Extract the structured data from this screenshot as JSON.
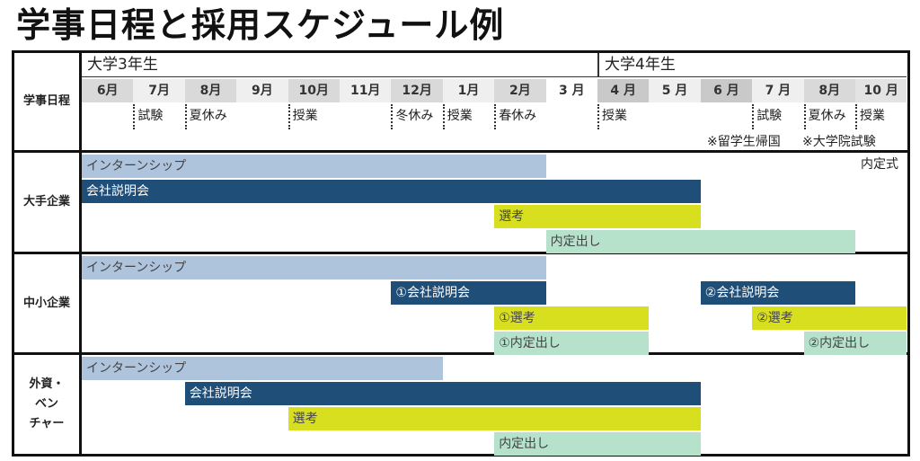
{
  "title": "学事日程と採用スケジュール例",
  "years": [
    {
      "label": "大学3年生",
      "start": 0,
      "end": 10
    },
    {
      "label": "大学4年生",
      "start": 10,
      "end": 16
    }
  ],
  "months": [
    "6月",
    "7月",
    "8月",
    "9月",
    "10月",
    "11月",
    "12月",
    "1月",
    "2月",
    "3 月",
    "4 月",
    "5 月",
    "6 月",
    "7 月",
    "8月",
    "10 月"
  ],
  "month_shades": [
    "#d9d9d9",
    "#efefef",
    "#d9d9d9",
    "#efefef",
    "#d9d9d9",
    "#efefef",
    "#d9d9d9",
    "#efefef",
    "#d9d9d9",
    "#ffffff",
    "#c9c9c9",
    "#efefef",
    "#c9c9c9",
    "#efefef",
    "#d9d9d9",
    "#e3e3e3"
  ],
  "academic": {
    "label": "学事日程",
    "items": [
      {
        "label": "試験",
        "col": 1
      },
      {
        "label": "夏休み",
        "col": 2
      },
      {
        "label": "授業",
        "col": 4
      },
      {
        "label": "冬休み",
        "col": 6
      },
      {
        "label": "授業",
        "col": 7
      },
      {
        "label": "春休み",
        "col": 8
      },
      {
        "label": "授業",
        "col": 10
      },
      {
        "label": "試験",
        "col": 13
      },
      {
        "label": "夏休み",
        "col": 14
      },
      {
        "label": "授業",
        "col": 15
      }
    ],
    "notes": [
      "※留学生帰国",
      "※大学院試験"
    ]
  },
  "sections": [
    {
      "label": "大手企業",
      "extra": "内定式",
      "bars": [
        {
          "label": "インターンシップ",
          "type": "intern",
          "row": 0,
          "start": 0,
          "end": 9
        },
        {
          "label": "会社説明会",
          "type": "briefing",
          "row": 1,
          "start": 0,
          "end": 12
        },
        {
          "label": "選考",
          "type": "select",
          "row": 2,
          "start": 8,
          "end": 12
        },
        {
          "label": "内定出し",
          "type": "offer",
          "row": 3,
          "start": 9,
          "end": 15
        }
      ]
    },
    {
      "label": "中小企業",
      "bars": [
        {
          "label": "インターンシップ",
          "type": "intern",
          "row": 0,
          "start": 0,
          "end": 9
        },
        {
          "label": "①会社説明会",
          "type": "briefing",
          "row": 1,
          "start": 6,
          "end": 9
        },
        {
          "label": "②会社説明会",
          "type": "briefing",
          "row": 1,
          "start": 12,
          "end": 15
        },
        {
          "label": "①選考",
          "type": "select",
          "row": 2,
          "start": 8,
          "end": 11
        },
        {
          "label": "②選考",
          "type": "select",
          "row": 2,
          "start": 13,
          "end": 16
        },
        {
          "label": "①内定出し",
          "type": "offer",
          "row": 3,
          "start": 8,
          "end": 11
        },
        {
          "label": "②内定出し",
          "type": "offer",
          "row": 3,
          "start": 14,
          "end": 16
        }
      ]
    },
    {
      "label": "外資・\nベン\nチャー",
      "bars": [
        {
          "label": "インターンシップ",
          "type": "intern",
          "row": 0,
          "start": 0,
          "end": 7
        },
        {
          "label": "会社説明会",
          "type": "briefing",
          "row": 1,
          "start": 2,
          "end": 12
        },
        {
          "label": "選考",
          "type": "select",
          "row": 2,
          "start": 4,
          "end": 12
        },
        {
          "label": "内定出し",
          "type": "offer",
          "row": 3,
          "start": 8,
          "end": 12
        }
      ]
    }
  ]
}
